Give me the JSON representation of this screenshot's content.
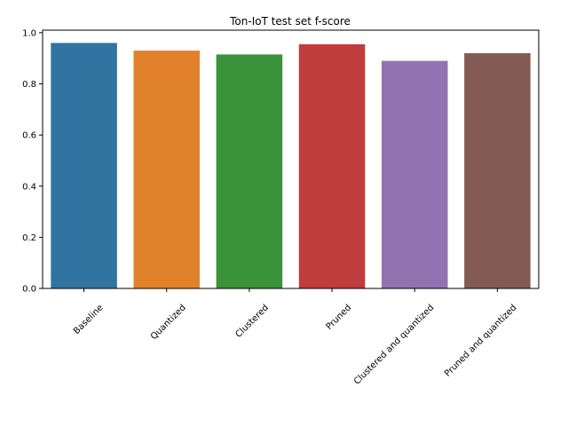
{
  "chart_data": {
    "type": "bar",
    "title": "Ton-IoT test set f-score",
    "xlabel": "",
    "ylabel": "",
    "categories": [
      "Baseline",
      "Quantized",
      "Clustered",
      "Pruned",
      "Clustered and quantized",
      "Pruned and quantized"
    ],
    "values": [
      0.96,
      0.93,
      0.915,
      0.955,
      0.89,
      0.92
    ],
    "colors": [
      "#3274a1",
      "#e1812c",
      "#3a923a",
      "#c03d3e",
      "#9372b2",
      "#845b53"
    ],
    "ylim": [
      0,
      1.0
    ],
    "yticks": [
      "0.0",
      "0.2",
      "0.4",
      "0.6",
      "0.8",
      "1.0"
    ],
    "ytick_values": [
      0,
      0.2,
      0.4,
      0.6,
      0.8,
      1.0
    ],
    "grid": false,
    "legend": "none"
  }
}
